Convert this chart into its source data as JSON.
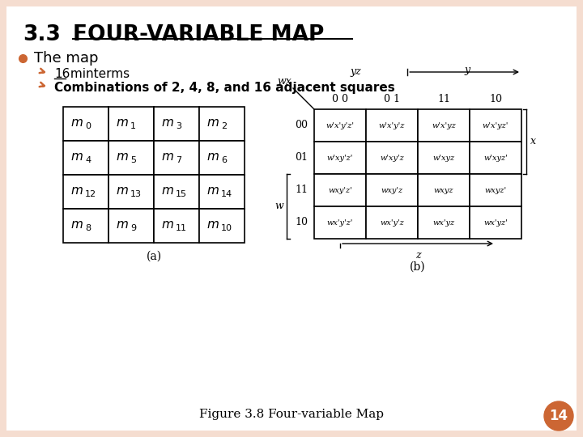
{
  "title_num": "3.3",
  "title_text": "FOUR-VARIABLE MAP",
  "bg_color": "#f5ddd0",
  "slide_bg": "#ffffff",
  "bullet_color": "#cc6633",
  "text_color": "#000000",
  "bullet1": "The map",
  "sub1_num": "16",
  "sub1_rest": " minterms",
  "sub2": "Combinations of 2, 4, 8, and 16 adjacent squares",
  "fig_caption": "Figure 3.8 Four-variable Map",
  "page_num": "14",
  "table_a_rows": [
    [
      "m_0",
      "m_1",
      "m_3",
      "m_2"
    ],
    [
      "m_4",
      "m_5",
      "m_7",
      "m_6"
    ],
    [
      "m_{12}",
      "m_{13}",
      "m_{15}",
      "m_{14}"
    ],
    [
      "m_8",
      "m_9",
      "m_{11}",
      "m_{10}"
    ]
  ],
  "table_b_col_headers": [
    "0 0",
    "0 1",
    "11",
    "10"
  ],
  "table_b_row_headers": [
    "00",
    "01",
    "11",
    "10"
  ],
  "table_b_wx_label": "wx",
  "table_b_yz_label": "yz",
  "table_b_y_label": "y",
  "table_b_x_label": "x",
  "table_b_w_label": "w",
  "table_b_z_label": "z",
  "table_b_cells": [
    [
      "w'x'y'z'",
      "w'x'y'z",
      "w'x'yz",
      "w'x'yz'"
    ],
    [
      "w'xy'z'",
      "w'xy'z",
      "w'xyz",
      "w'xyz'"
    ],
    [
      "wxy'z'",
      "wxy'z",
      "wxyz",
      "wxyz'"
    ],
    [
      "wx'y'z'",
      "wx'y'z",
      "wx'yz",
      "wx'yz'"
    ]
  ]
}
